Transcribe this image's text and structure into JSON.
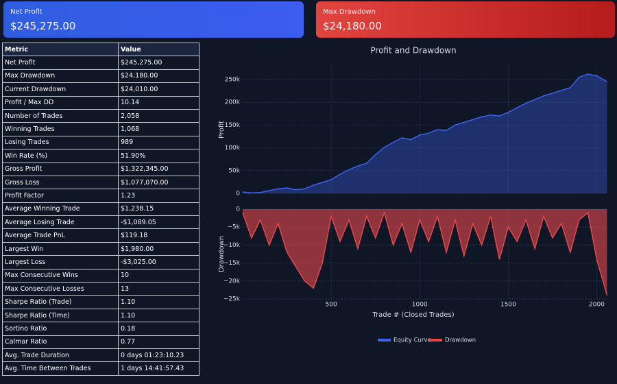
{
  "cards": [
    {
      "label": "Net Profit",
      "value": "$245,275.00"
    },
    {
      "label": "Max Drawdown",
      "value": "$24,180.00"
    }
  ],
  "table": {
    "header": [
      "Metric",
      "Value"
    ],
    "rows": [
      [
        "Net Profit",
        "$245,275.00"
      ],
      [
        "Max Drawdown",
        "$24,180.00"
      ],
      [
        "Current Drawdown",
        "$24,010.00"
      ],
      [
        "Profit / Max DD",
        "10.14"
      ],
      [
        "Number of Trades",
        "2,058"
      ],
      [
        "Winning Trades",
        "1,068"
      ],
      [
        "Losing Trades",
        "989"
      ],
      [
        "Win Rate (%)",
        "51.90%"
      ],
      [
        "Gross Profit",
        "$1,322,345.00"
      ],
      [
        "Gross Loss",
        "$1,077,070.00"
      ],
      [
        "Profit Factor",
        "1.23"
      ],
      [
        "Average Winning Trade",
        "$1,238.15"
      ],
      [
        "Average Losing Trade",
        "-$1,089.05"
      ],
      [
        "Average Trade PnL",
        "$119.18"
      ],
      [
        "Largest Win",
        "$1,980.00"
      ],
      [
        "Largest Loss",
        "-$3,025.00"
      ],
      [
        "Max Consecutive Wins",
        "10"
      ],
      [
        "Max Consecutive Losses",
        "13"
      ],
      [
        "Sharpe Ratio (Trade)",
        "1.10"
      ],
      [
        "Sharpe Ratio (Time)",
        "1.10"
      ],
      [
        "Sortino Ratio",
        "0.18"
      ],
      [
        "Calmar Ratio",
        "0.77"
      ],
      [
        "Avg. Trade Duration",
        "0 days 01:23:10.23"
      ],
      [
        "Avg. Time Between Trades",
        "1 days 14:41:57.43"
      ]
    ]
  },
  "chart_data": {
    "type": "area",
    "title": "Profit and Drawdown",
    "xlabel": "Trade # (Closed Trades)",
    "grid": true,
    "legend": "bottom",
    "x": [
      0,
      50,
      100,
      150,
      200,
      250,
      300,
      350,
      400,
      450,
      500,
      550,
      600,
      650,
      700,
      750,
      800,
      850,
      900,
      950,
      1000,
      1050,
      1100,
      1150,
      1200,
      1250,
      1300,
      1350,
      1400,
      1450,
      1500,
      1550,
      1600,
      1650,
      1700,
      1750,
      1800,
      1850,
      1900,
      1950,
      2000,
      2058
    ],
    "xlim": [
      0,
      2060
    ],
    "xticks": [
      500,
      1000,
      1500,
      2000
    ],
    "series": [
      {
        "name": "Equity Curve",
        "color": "#3b63f0",
        "ylabel": "Profit",
        "ylim": [
          0,
          280000
        ],
        "yticks": [
          0,
          {
            "value": 50000,
            "label": "50k"
          },
          {
            "value": 100000,
            "label": "100k"
          },
          {
            "value": 150000,
            "label": "150k"
          },
          {
            "value": 200000,
            "label": "200k"
          },
          {
            "value": 250000,
            "label": "250k"
          }
        ],
        "values": [
          3000,
          1000,
          2000,
          6000,
          10000,
          12000,
          8000,
          10000,
          18000,
          24000,
          30000,
          42000,
          52000,
          60000,
          66000,
          85000,
          101000,
          112000,
          122000,
          118000,
          128000,
          132000,
          140000,
          138000,
          150000,
          156000,
          162000,
          168000,
          172000,
          170000,
          178000,
          188000,
          198000,
          206000,
          214000,
          220000,
          226000,
          232000,
          255000,
          262000,
          258000,
          245275
        ]
      },
      {
        "name": "Drawdown",
        "color": "#e5484d",
        "ylabel": "Drawdown",
        "ylim": [
          -25000,
          0
        ],
        "yticks": [
          0,
          {
            "value": -5000,
            "label": "−5k"
          },
          {
            "value": -10000,
            "label": "−10k"
          },
          {
            "value": -15000,
            "label": "−15k"
          },
          {
            "value": -20000,
            "label": "−20k"
          },
          {
            "value": -25000,
            "label": "−25k"
          }
        ],
        "values": [
          -1000,
          -8000,
          -3000,
          -10000,
          -4000,
          -12000,
          -16000,
          -20000,
          -22000,
          -15000,
          -2000,
          -9000,
          -3000,
          -11000,
          -2000,
          -8000,
          -1000,
          -10000,
          -4000,
          -12000,
          -3000,
          -9000,
          -2000,
          -12000,
          -3000,
          -13000,
          -4000,
          -10000,
          -2000,
          -14000,
          -5000,
          -9000,
          -3000,
          -11000,
          -2000,
          -8000,
          -4000,
          -12000,
          -3000,
          -1000,
          -14000,
          -24010
        ]
      }
    ]
  }
}
